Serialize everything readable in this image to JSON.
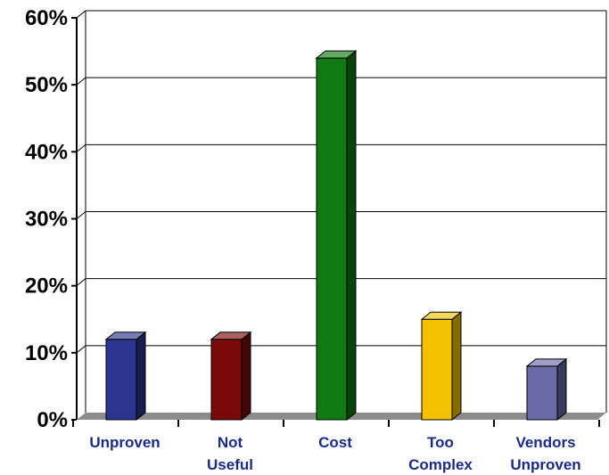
{
  "chart_data": {
    "type": "bar",
    "style": "3d-column",
    "title": "",
    "xlabel": "",
    "ylabel": "",
    "categories": [
      {
        "lines": [
          "Unproven"
        ]
      },
      {
        "lines": [
          "Not",
          "Useful"
        ]
      },
      {
        "lines": [
          "Cost"
        ]
      },
      {
        "lines": [
          "Too",
          "Complex"
        ]
      },
      {
        "lines": [
          "Vendors",
          "Unproven"
        ]
      }
    ],
    "values": [
      12,
      12,
      54,
      15,
      8
    ],
    "value_unit": "%",
    "bar_colors": [
      "#2b3590",
      "#7a0a0a",
      "#0f7a12",
      "#f2c200",
      "#6a6aa8"
    ],
    "ylim": [
      0,
      60
    ],
    "yticks": [
      {
        "value": 0,
        "label": "0%"
      },
      {
        "value": 10,
        "label": "10%"
      },
      {
        "value": 20,
        "label": "20%"
      },
      {
        "value": 30,
        "label": "30%"
      },
      {
        "value": 40,
        "label": "40%"
      },
      {
        "value": 50,
        "label": "50%"
      },
      {
        "value": 60,
        "label": "60%"
      }
    ],
    "grid": true,
    "legend": "none",
    "category_label_color": "#1a2a8a",
    "gridline_color": "#000000",
    "floor_color": "#8c8c8c"
  }
}
